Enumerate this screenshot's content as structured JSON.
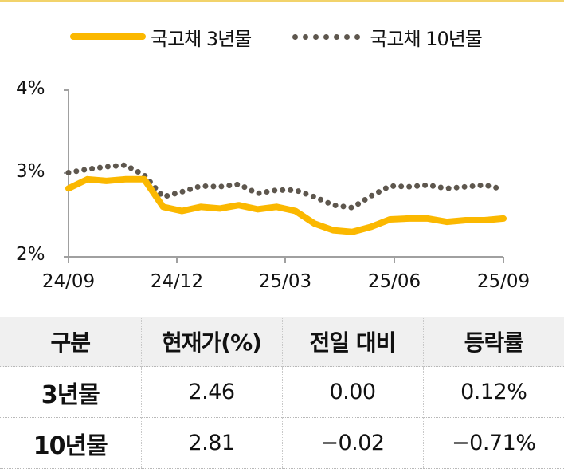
{
  "legend": {
    "series_3y": "국고채 3년물",
    "series_10y": "국고채 10년물"
  },
  "colors": {
    "series_3y": "#fbb800",
    "series_10y": "#5e574e",
    "axis": "#a0a0a0",
    "top_rule": "#f2d36b",
    "table_header_bg": "#f0f0f0"
  },
  "axis": {
    "y_ticks": [
      "4%",
      "3%",
      "2%"
    ],
    "x_ticks": [
      "24/09",
      "24/12",
      "25/03",
      "25/06",
      "25/09"
    ]
  },
  "table": {
    "headers": [
      "구분",
      "현재가(%)",
      "전일 대비",
      "등락률"
    ],
    "rows": [
      {
        "label": "3년물",
        "price": "2.46",
        "change": "0.00",
        "rate": "0.12%"
      },
      {
        "label": "10년물",
        "price": "2.81",
        "change": "−0.02",
        "rate": "−0.71%"
      }
    ]
  },
  "chart_data": {
    "type": "line",
    "title": "",
    "xlabel": "",
    "ylabel": "",
    "ylim": [
      2,
      4
    ],
    "y_ticks": [
      2,
      3,
      4
    ],
    "x_tick_labels": [
      "24/09",
      "24/12",
      "25/03",
      "25/06",
      "25/09"
    ],
    "grid": false,
    "legend_position": "top",
    "x": [
      "24/09",
      "24/10a",
      "24/10b",
      "24/11a",
      "24/11b",
      "24/12a",
      "24/12b",
      "25/01a",
      "25/01b",
      "25/02a",
      "25/02b",
      "25/03a",
      "25/03b",
      "25/04a",
      "25/04b",
      "25/05a",
      "25/05b",
      "25/06a",
      "25/06b",
      "25/07a",
      "25/07b",
      "25/08a",
      "25/08b",
      "25/09"
    ],
    "series": [
      {
        "name": "국고채 3년물",
        "style": "solid",
        "values": [
          2.82,
          2.93,
          2.91,
          2.93,
          2.93,
          2.6,
          2.55,
          2.6,
          2.58,
          2.62,
          2.57,
          2.6,
          2.55,
          2.4,
          2.32,
          2.3,
          2.36,
          2.45,
          2.46,
          2.46,
          2.42,
          2.44,
          2.44,
          2.46
        ]
      },
      {
        "name": "국고채 10년물",
        "style": "dotted",
        "values": [
          3.01,
          3.05,
          3.08,
          3.1,
          2.98,
          2.72,
          2.78,
          2.85,
          2.84,
          2.87,
          2.76,
          2.8,
          2.8,
          2.72,
          2.62,
          2.59,
          2.73,
          2.85,
          2.84,
          2.86,
          2.82,
          2.84,
          2.86,
          2.81
        ]
      }
    ]
  }
}
